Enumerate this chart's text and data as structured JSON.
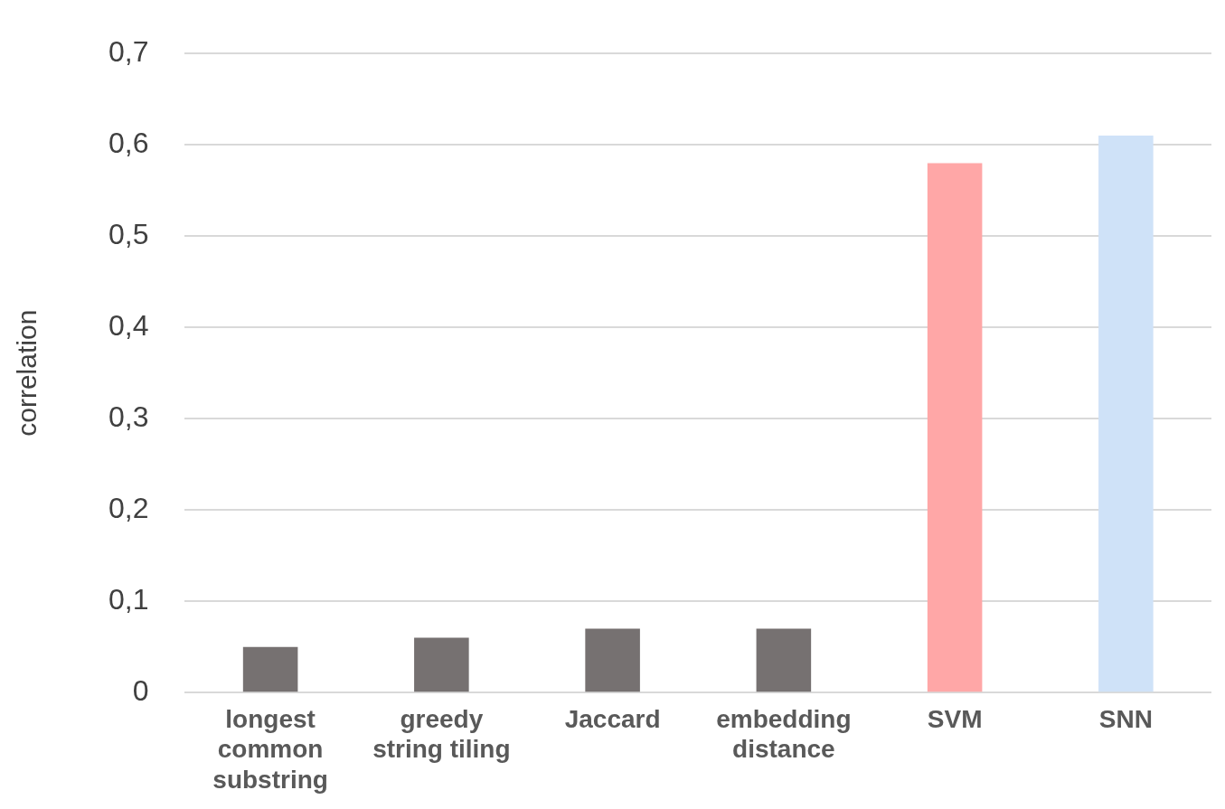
{
  "chart_data": {
    "type": "bar",
    "ylabel": "correlation",
    "categories": [
      "longest common substring",
      "greedy string tiling",
      "Jaccard",
      "embedding distance",
      "SVM",
      "SNN"
    ],
    "values": [
      0.05,
      0.06,
      0.07,
      0.07,
      0.58,
      0.61
    ],
    "colors": [
      "#767171",
      "#767171",
      "#767171",
      "#767171",
      "#ffa7a7",
      "#cfe2f8"
    ],
    "ylim": [
      0,
      0.7
    ],
    "yticks": [
      {
        "value": 0,
        "label": "0"
      },
      {
        "value": 0.1,
        "label": "0,1"
      },
      {
        "value": 0.2,
        "label": "0,2"
      },
      {
        "value": 0.3,
        "label": "0,3"
      },
      {
        "value": 0.4,
        "label": "0,4"
      },
      {
        "value": 0.5,
        "label": "0,5"
      },
      {
        "value": 0.6,
        "label": "0,6"
      },
      {
        "value": 0.7,
        "label": "0,7"
      }
    ],
    "grid": "y",
    "legend": false
  }
}
